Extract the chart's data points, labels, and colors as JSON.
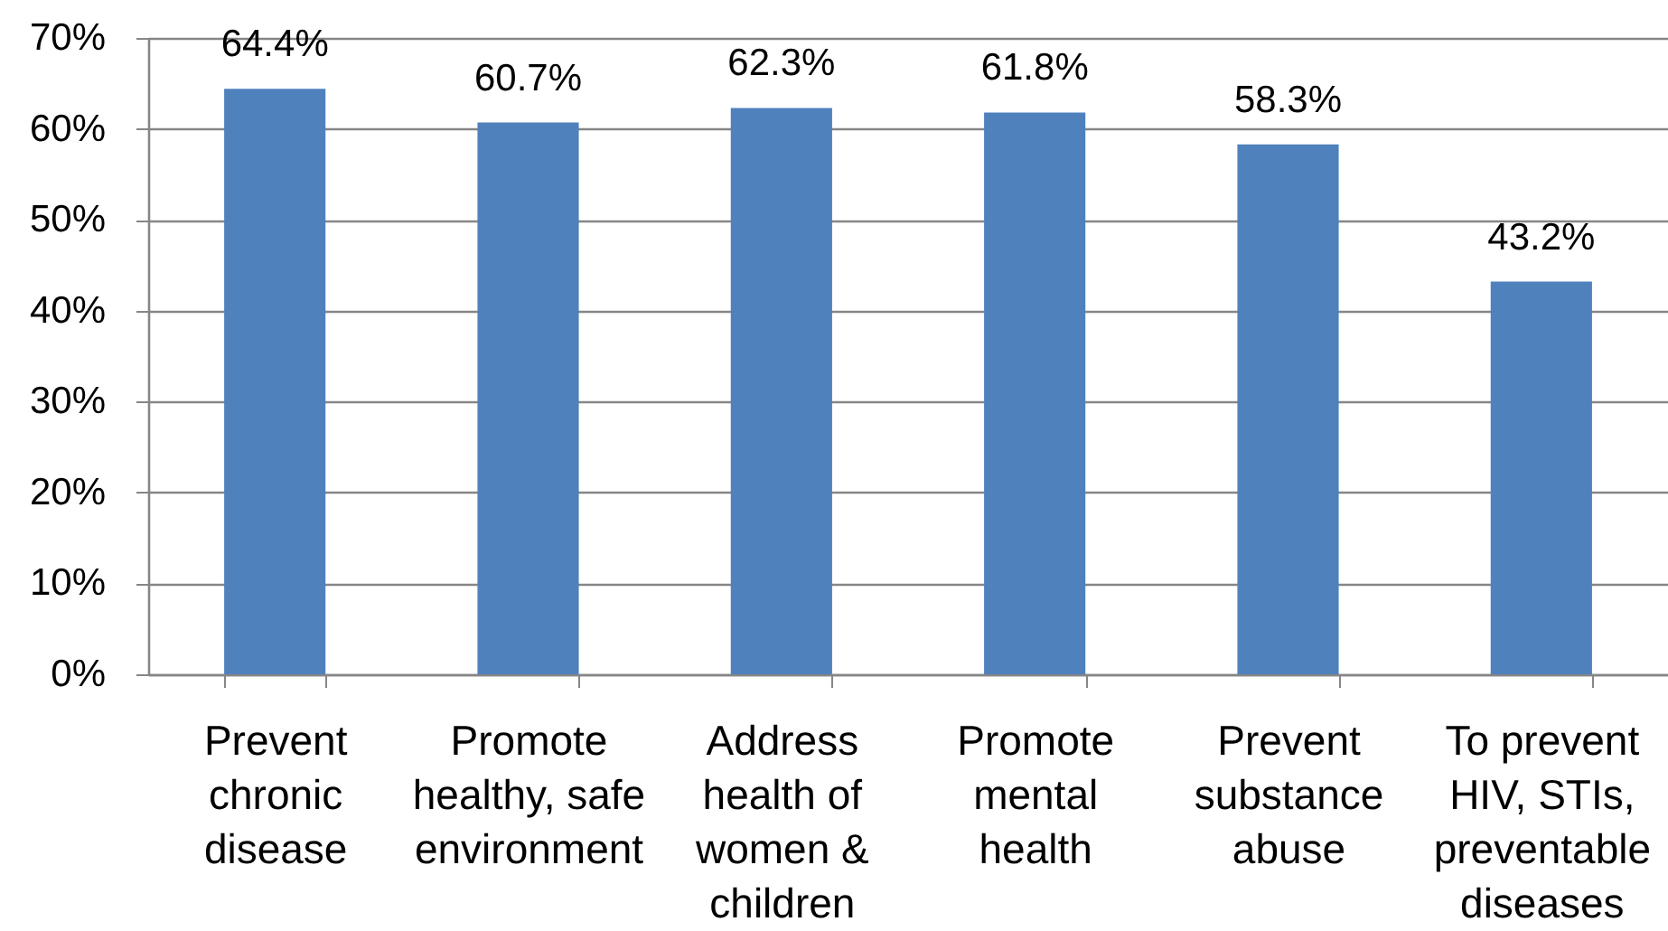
{
  "chart_data": {
    "type": "bar",
    "categories": [
      "Prevent chronic disease",
      "Promote healthy, safe environment",
      "Address health of women & children",
      "Promote mental health",
      "Prevent substance abuse",
      "To prevent HIV, STIs, preventable diseases"
    ],
    "values": [
      64.4,
      60.7,
      62.3,
      61.8,
      58.3,
      43.2
    ],
    "value_labels": [
      "64.4%",
      "60.7%",
      "62.3%",
      "61.8%",
      "58.3%",
      "43.2%"
    ],
    "color": "#4f81bd",
    "ylim": [
      0,
      70
    ],
    "yticks": [
      {
        "value": 0,
        "label": "0%"
      },
      {
        "value": 10,
        "label": "10%"
      },
      {
        "value": 20,
        "label": "20%"
      },
      {
        "value": 30,
        "label": "30%"
      },
      {
        "value": 40,
        "label": "40%"
      },
      {
        "value": 50,
        "label": "50%"
      },
      {
        "value": 60,
        "label": "60%"
      },
      {
        "value": 70,
        "label": "70%"
      }
    ],
    "grid": "y"
  }
}
